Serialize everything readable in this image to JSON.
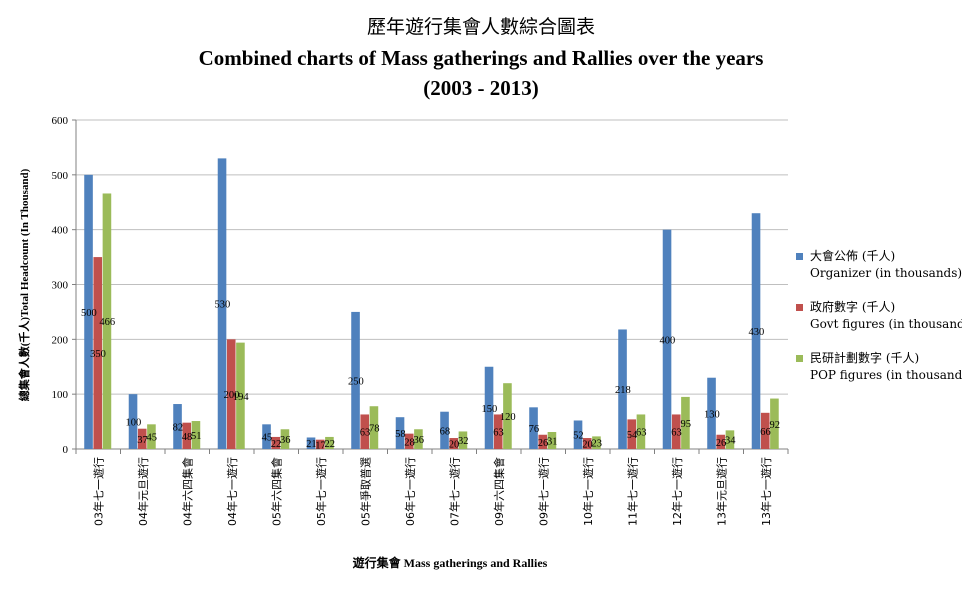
{
  "title": {
    "zh": "歷年遊行集會人數綜合圖表",
    "en": "Combined charts of Mass gatherings and Rallies over the years",
    "years": "(2003 - 2013)"
  },
  "chart_data": {
    "type": "bar",
    "xlabel": "遊行集會 Mass gatherings and Rallies",
    "ylabel": "總集會人數(千人)Total Headcount (In Thousand)",
    "ylim": [
      0,
      600
    ],
    "yticks": [
      0,
      100,
      200,
      300,
      400,
      500,
      600
    ],
    "grid": true,
    "legend_position": "right",
    "categories": [
      "03年七一遊行",
      "04年元旦遊行",
      "04年六四集會",
      "04年七一遊行",
      "05年六四集會",
      "05年七一遊行",
      "05年爭取普選",
      "06年七一遊行",
      "07年七一遊行",
      "09年六四集會",
      "09年七一遊行",
      "10年七一遊行",
      "11年七一遊行",
      "12年七一遊行",
      "13年元旦遊行",
      "13年七一遊行"
    ],
    "series": [
      {
        "name": "大會公佈 (千人)",
        "name_en": "Organizer (in thousands)",
        "color": "#4f81bd",
        "values": [
          500,
          100,
          82,
          530,
          45,
          21,
          250,
          58,
          68,
          150,
          76,
          52,
          218,
          400,
          130,
          430
        ],
        "labels": [
          "500",
          "100",
          "82",
          "530",
          "45",
          "21",
          "250",
          "58",
          "68",
          "150",
          "76",
          "52",
          "218",
          "400",
          "130",
          "430"
        ]
      },
      {
        "name": "政府數字 (千人)",
        "name_en": "Govt figures (in thousands)",
        "color": "#c0504d",
        "values": [
          350,
          37,
          48,
          200,
          22,
          17,
          63,
          28,
          20,
          63,
          26,
          20,
          54,
          63,
          26,
          66
        ],
        "labels": [
          "350",
          "37",
          "48",
          "200",
          "22",
          "17",
          "63",
          "28",
          "20",
          "63",
          "26",
          "20",
          "54",
          "63",
          "26",
          "66"
        ]
      },
      {
        "name": "民研計劃數字 (千人)",
        "name_en": "POP figures (in thousands)",
        "color": "#9bbb59",
        "values": [
          466,
          45,
          51,
          194,
          36,
          22,
          78,
          36,
          32,
          120,
          31,
          23,
          63,
          95,
          34,
          92
        ],
        "labels": [
          "466",
          "45",
          "51",
          "194",
          "36",
          "22",
          "78",
          "36",
          "32",
          "120",
          "31",
          "23",
          "63",
          "95",
          "34",
          "92"
        ]
      }
    ]
  }
}
